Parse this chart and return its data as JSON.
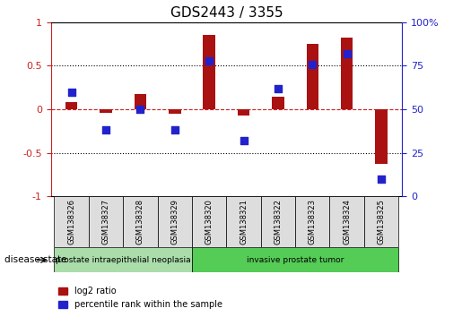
{
  "title": "GDS2443 / 3355",
  "samples": [
    "GSM138326",
    "GSM138327",
    "GSM138328",
    "GSM138329",
    "GSM138320",
    "GSM138321",
    "GSM138322",
    "GSM138323",
    "GSM138324",
    "GSM138325"
  ],
  "log2_ratio": [
    0.08,
    -0.04,
    0.18,
    -0.05,
    0.85,
    -0.07,
    0.15,
    0.75,
    0.82,
    -0.63
  ],
  "percentile_rank": [
    60,
    38,
    50,
    38,
    78,
    32,
    62,
    76,
    82,
    10
  ],
  "bar_color": "#aa1111",
  "dot_color": "#2222cc",
  "ylim_left": [
    -1,
    1
  ],
  "ylim_right": [
    0,
    100
  ],
  "yticks_left": [
    -1,
    -0.5,
    0,
    0.5,
    1
  ],
  "yticks_right": [
    0,
    25,
    50,
    75,
    100
  ],
  "ytick_labels_left": [
    "-1",
    "-0.5",
    "0",
    "0.5",
    "1"
  ],
  "ytick_labels_right": [
    "0",
    "25",
    "50",
    "75",
    "100%"
  ],
  "disease_groups": [
    {
      "label": "prostate intraepithelial neoplasia",
      "start": 0,
      "end": 4,
      "color": "#aaddaa"
    },
    {
      "label": "invasive prostate tumor",
      "start": 4,
      "end": 10,
      "color": "#55cc55"
    }
  ],
  "legend_items": [
    {
      "label": "log2 ratio",
      "color": "#aa1111"
    },
    {
      "label": "percentile rank within the sample",
      "color": "#2222cc"
    }
  ],
  "disease_state_label": "disease state",
  "background_color": "#ffffff",
  "plot_bg_color": "#ffffff",
  "bar_width": 0.35,
  "dot_size": 35
}
